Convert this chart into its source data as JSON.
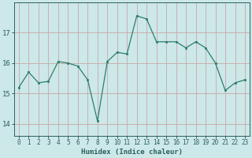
{
  "x": [
    0,
    1,
    2,
    3,
    4,
    5,
    6,
    7,
    8,
    9,
    10,
    11,
    12,
    13,
    14,
    15,
    16,
    17,
    18,
    19,
    20,
    21,
    22,
    23
  ],
  "y": [
    15.2,
    15.7,
    15.35,
    15.4,
    16.05,
    16.0,
    15.9,
    15.45,
    14.1,
    16.05,
    16.35,
    16.3,
    17.55,
    17.45,
    16.7,
    16.7,
    16.7,
    16.5,
    16.7,
    16.5,
    16.0,
    15.1,
    15.35,
    15.45
  ],
  "line_color": "#2e7d6e",
  "marker_color": "#2e7d6e",
  "bg_color": "#cce8e8",
  "grid_color": "#b8d8d8",
  "axis_label_color": "#2e5f5f",
  "tick_color": "#2e5f5f",
  "xlabel": "Humidex (Indice chaleur)",
  "ylim": [
    13.6,
    18.0
  ],
  "yticks": [
    14,
    15,
    16,
    17
  ],
  "xticks": [
    0,
    1,
    2,
    3,
    4,
    5,
    6,
    7,
    8,
    9,
    10,
    11,
    12,
    13,
    14,
    15,
    16,
    17,
    18,
    19,
    20,
    21,
    22,
    23
  ],
  "tick_fontsize": 5.5,
  "xlabel_fontsize": 6.5,
  "ytick_fontsize": 6.5
}
